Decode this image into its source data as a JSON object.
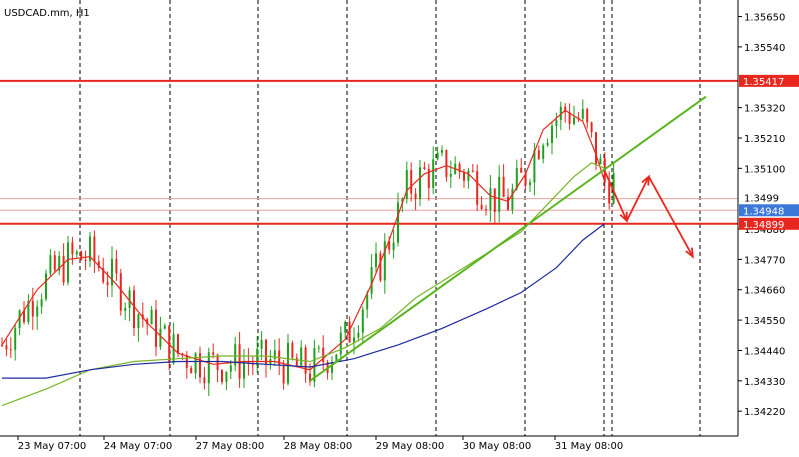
{
  "chart_data": {
    "type": "candlestick",
    "title": "USDCAD.mm, H1",
    "x_tick_labels": [
      "23 May 07:00",
      "24 May 07:00",
      "27 May 08:00",
      "28 May 08:00",
      "29 May 08:00",
      "30 May 08:00",
      "31 May 08:00"
    ],
    "y_tick_labels": [
      "1.35650",
      "1.35540",
      "1.35320",
      "1.35210",
      "1.35100",
      "1.34880",
      "1.34770",
      "1.34660",
      "1.34550",
      "1.34440",
      "1.34330",
      "1.34220"
    ],
    "ylim": [
      1.3413,
      1.3571
    ],
    "price_tags": [
      {
        "label": "1.35417",
        "value": 1.35417,
        "color": "#e8281e"
      },
      {
        "label": "1.34948",
        "value": 1.34948,
        "color": "#3c78d8"
      },
      {
        "label": "1.34899",
        "value": 1.34899,
        "color": "#e8281e"
      }
    ],
    "partial_tag_text": "1.3499",
    "horizontal_levels": [
      {
        "value": 1.35417,
        "color": "#e8281e",
        "style": "solid-thick"
      },
      {
        "value": 1.34899,
        "color": "#e8281e",
        "style": "solid-thick"
      },
      {
        "value": 1.34948,
        "color": "#e8a0a0",
        "style": "thin"
      },
      {
        "value": 1.3499,
        "color": "#e8a0a0",
        "style": "thin"
      }
    ],
    "candles": {
      "bull_color": "#1fa01f",
      "bear_color": "#e8281e",
      "count": 140
    },
    "moving_averages": [
      {
        "color": "#e8281e",
        "points": [
          [
            0,
            1.3446
          ],
          [
            8,
            1.3466
          ],
          [
            15,
            1.3477
          ],
          [
            20,
            1.3478
          ],
          [
            26,
            1.3468
          ],
          [
            33,
            1.3454
          ],
          [
            40,
            1.3443
          ],
          [
            48,
            1.3439
          ],
          [
            55,
            1.344
          ],
          [
            62,
            1.344
          ],
          [
            70,
            1.3437
          ],
          [
            78,
            1.3448
          ],
          [
            84,
            1.3468
          ],
          [
            88,
            1.3484
          ],
          [
            92,
            1.3502
          ],
          [
            96,
            1.3508
          ],
          [
            101,
            1.3511
          ],
          [
            106,
            1.3508
          ],
          [
            111,
            1.35
          ],
          [
            115,
            1.3498
          ],
          [
            119,
            1.3508
          ],
          [
            123,
            1.3524
          ],
          [
            128,
            1.3531
          ],
          [
            132,
            1.3527
          ],
          [
            135,
            1.3515
          ],
          [
            137,
            1.3505
          ]
        ]
      },
      {
        "color": "#78b428",
        "points": [
          [
            0,
            1.3424
          ],
          [
            10,
            1.343
          ],
          [
            20,
            1.3437
          ],
          [
            30,
            1.344
          ],
          [
            40,
            1.3441
          ],
          [
            50,
            1.3442
          ],
          [
            60,
            1.3442
          ],
          [
            70,
            1.344
          ],
          [
            78,
            1.3445
          ],
          [
            86,
            1.3452
          ],
          [
            94,
            1.3463
          ],
          [
            102,
            1.3471
          ],
          [
            110,
            1.3479
          ],
          [
            118,
            1.3487
          ],
          [
            124,
            1.3497
          ],
          [
            130,
            1.3507
          ],
          [
            134,
            1.3512
          ],
          [
            137,
            1.351
          ]
        ]
      },
      {
        "color": "#1e2aa0",
        "points": [
          [
            0,
            1.3434
          ],
          [
            10,
            1.3434
          ],
          [
            20,
            1.3437
          ],
          [
            30,
            1.3439
          ],
          [
            40,
            1.344
          ],
          [
            50,
            1.344
          ],
          [
            60,
            1.3439
          ],
          [
            70,
            1.3438
          ],
          [
            80,
            1.3441
          ],
          [
            90,
            1.3446
          ],
          [
            100,
            1.3452
          ],
          [
            110,
            1.3459
          ],
          [
            118,
            1.3465
          ],
          [
            126,
            1.3474
          ],
          [
            132,
            1.3484
          ],
          [
            137,
            1.349
          ]
        ]
      }
    ],
    "trendline": {
      "color": "#5ab41e",
      "points": [
        [
          70,
          1.3433
        ],
        [
          160,
          1.3536
        ]
      ]
    },
    "projection": {
      "color": "#e8281e",
      "points": [
        [
          137,
          1.3509
        ],
        [
          142,
          1.3491
        ],
        [
          147,
          1.3507
        ],
        [
          157,
          1.3478
        ]
      ]
    }
  }
}
